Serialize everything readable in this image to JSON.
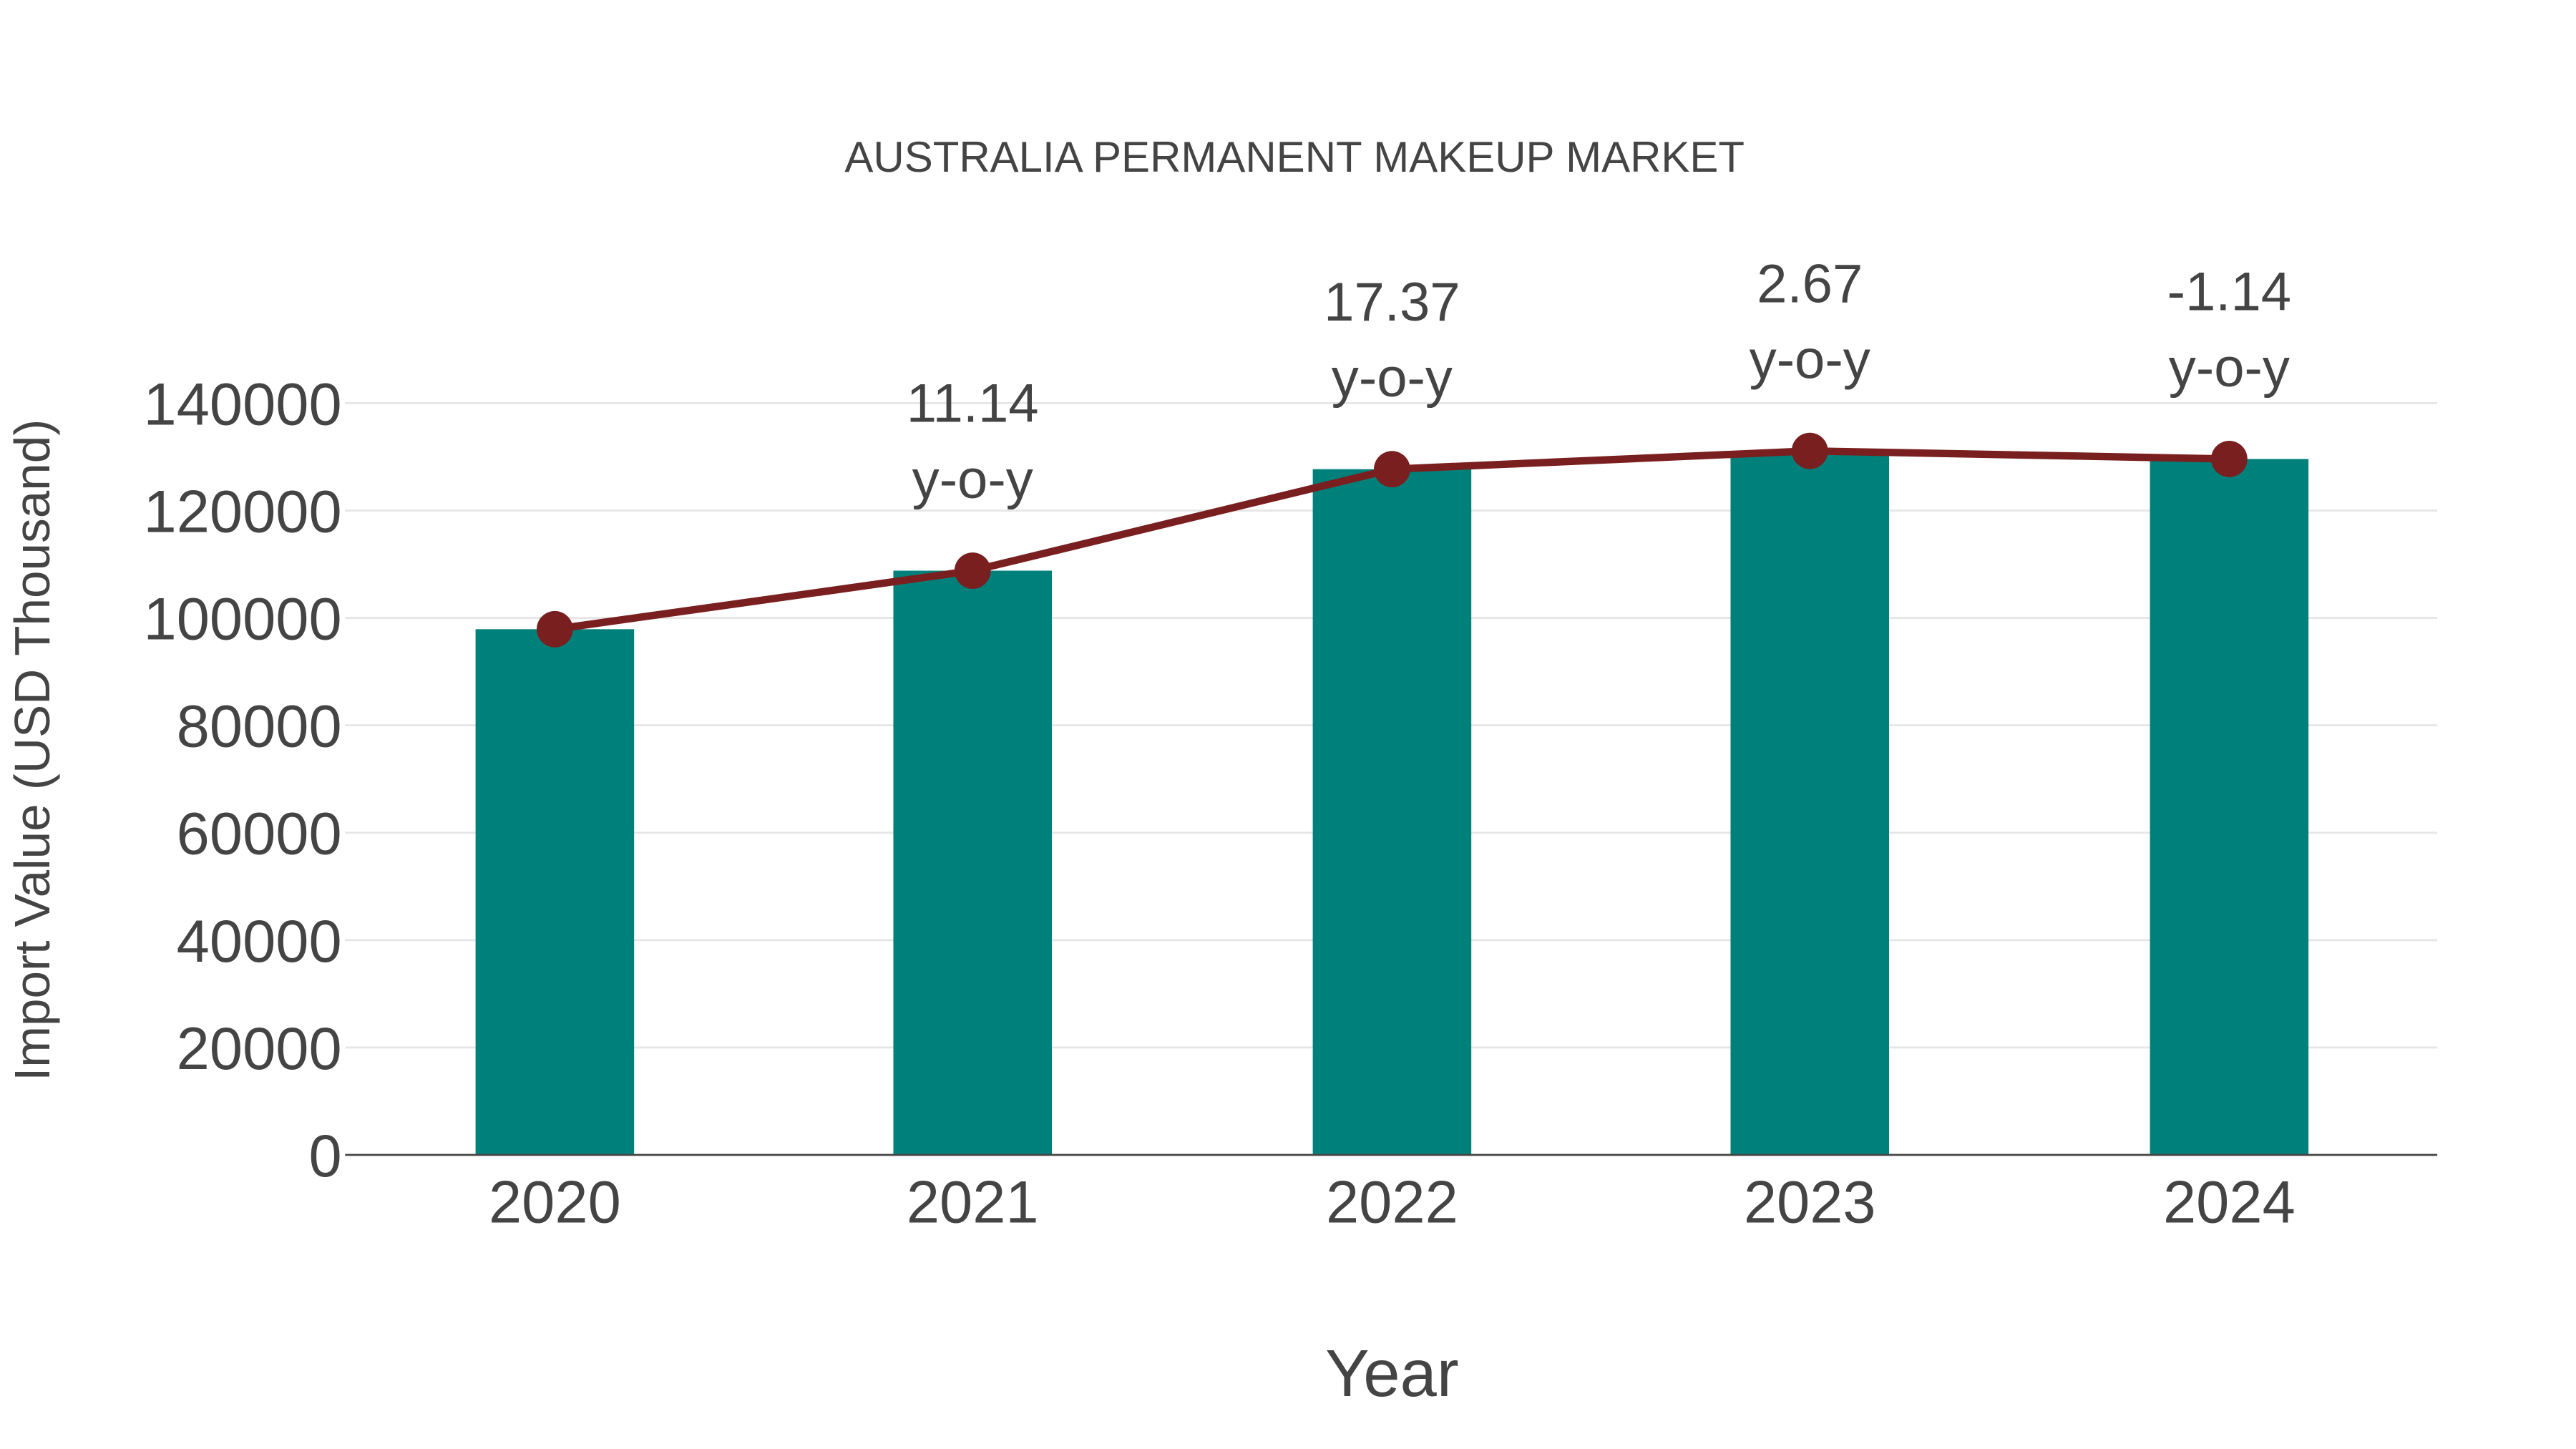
{
  "chart_data": {
    "type": "bar",
    "title": "AUSTRALIA PERMANENT MAKEUP MARKET",
    "xlabel": "Year",
    "ylabel": "Import Value (USD Thousand)",
    "categories": [
      "2020",
      "2021",
      "2022",
      "2023",
      "2024"
    ],
    "series": [
      {
        "name": "Import Value",
        "type": "bar",
        "color": "#00807b",
        "values": [
          97900,
          108800,
          127700,
          131100,
          129600
        ]
      },
      {
        "name": "Import Value trend",
        "type": "line",
        "color": "#7a1f1f",
        "values": [
          97900,
          108800,
          127700,
          131100,
          129600
        ]
      }
    ],
    "annotations": [
      {
        "year": "2021",
        "value": "11.14",
        "label": "y-o-y"
      },
      {
        "year": "2022",
        "value": "17.37",
        "label": "y-o-y"
      },
      {
        "year": "2023",
        "value": "2.67",
        "label": "y-o-y"
      },
      {
        "year": "2024",
        "value": "-1.14",
        "label": "y-o-y"
      }
    ],
    "yticks": [
      "0",
      "20000",
      "40000",
      "60000",
      "80000",
      "100000",
      "120000",
      "140000"
    ],
    "ylim": [
      0,
      140000
    ],
    "grid": true,
    "legend": "none"
  }
}
